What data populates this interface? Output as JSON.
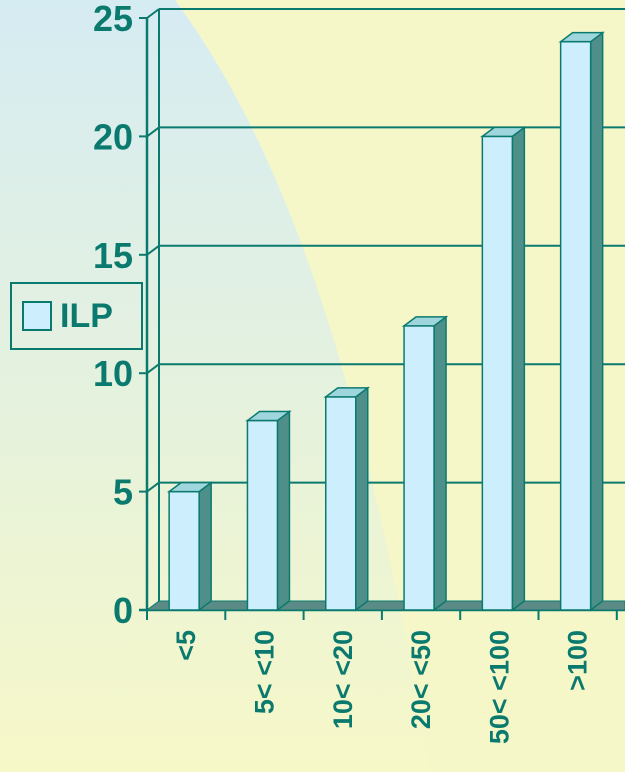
{
  "chart_data": {
    "type": "bar",
    "categories": [
      "<5",
      "5< <10",
      "10< <20",
      "20< <50",
      "50< <100",
      ">100"
    ],
    "series": [
      {
        "name": "ILP",
        "values": [
          5,
          8,
          9,
          12,
          20,
          24
        ]
      }
    ],
    "y_ticks": [
      "0",
      "5",
      "10",
      "15",
      "20",
      "25"
    ],
    "ylim": [
      0,
      25
    ],
    "grid": true,
    "legend_position": "left",
    "colors": {
      "bar_front": "#cdeefc",
      "bar_top": "#9fd6de",
      "bar_side": "#4f8f8a",
      "floor": "#5a8b86",
      "axis": "#0b7a6e",
      "text": "#0b7a6e"
    }
  }
}
